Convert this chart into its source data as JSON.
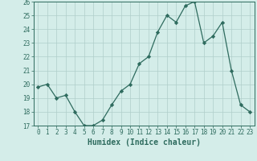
{
  "x": [
    0,
    1,
    2,
    3,
    4,
    5,
    6,
    7,
    8,
    9,
    10,
    11,
    12,
    13,
    14,
    15,
    16,
    17,
    18,
    19,
    20,
    21,
    22,
    23
  ],
  "y": [
    19.8,
    20.0,
    19.0,
    19.2,
    18.0,
    17.0,
    17.0,
    17.4,
    18.5,
    19.5,
    20.0,
    21.5,
    22.0,
    23.8,
    25.0,
    24.5,
    25.7,
    26.0,
    23.0,
    23.5,
    24.5,
    21.0,
    18.5,
    18.0
  ],
  "xlabel": "Humidex (Indice chaleur)",
  "ylim": [
    17,
    26
  ],
  "yticks": [
    17,
    18,
    19,
    20,
    21,
    22,
    23,
    24,
    25,
    26
  ],
  "xticks": [
    0,
    1,
    2,
    3,
    4,
    5,
    6,
    7,
    8,
    9,
    10,
    11,
    12,
    13,
    14,
    15,
    16,
    17,
    18,
    19,
    20,
    21,
    22,
    23
  ],
  "line_color": "#2e6b5e",
  "marker": "D",
  "marker_size": 2.2,
  "bg_color": "#d4ede9",
  "grid_color": "#b0ceca",
  "axis_color": "#2e6b5e",
  "tick_label_fontsize": 5.5,
  "xlabel_fontsize": 7.0
}
